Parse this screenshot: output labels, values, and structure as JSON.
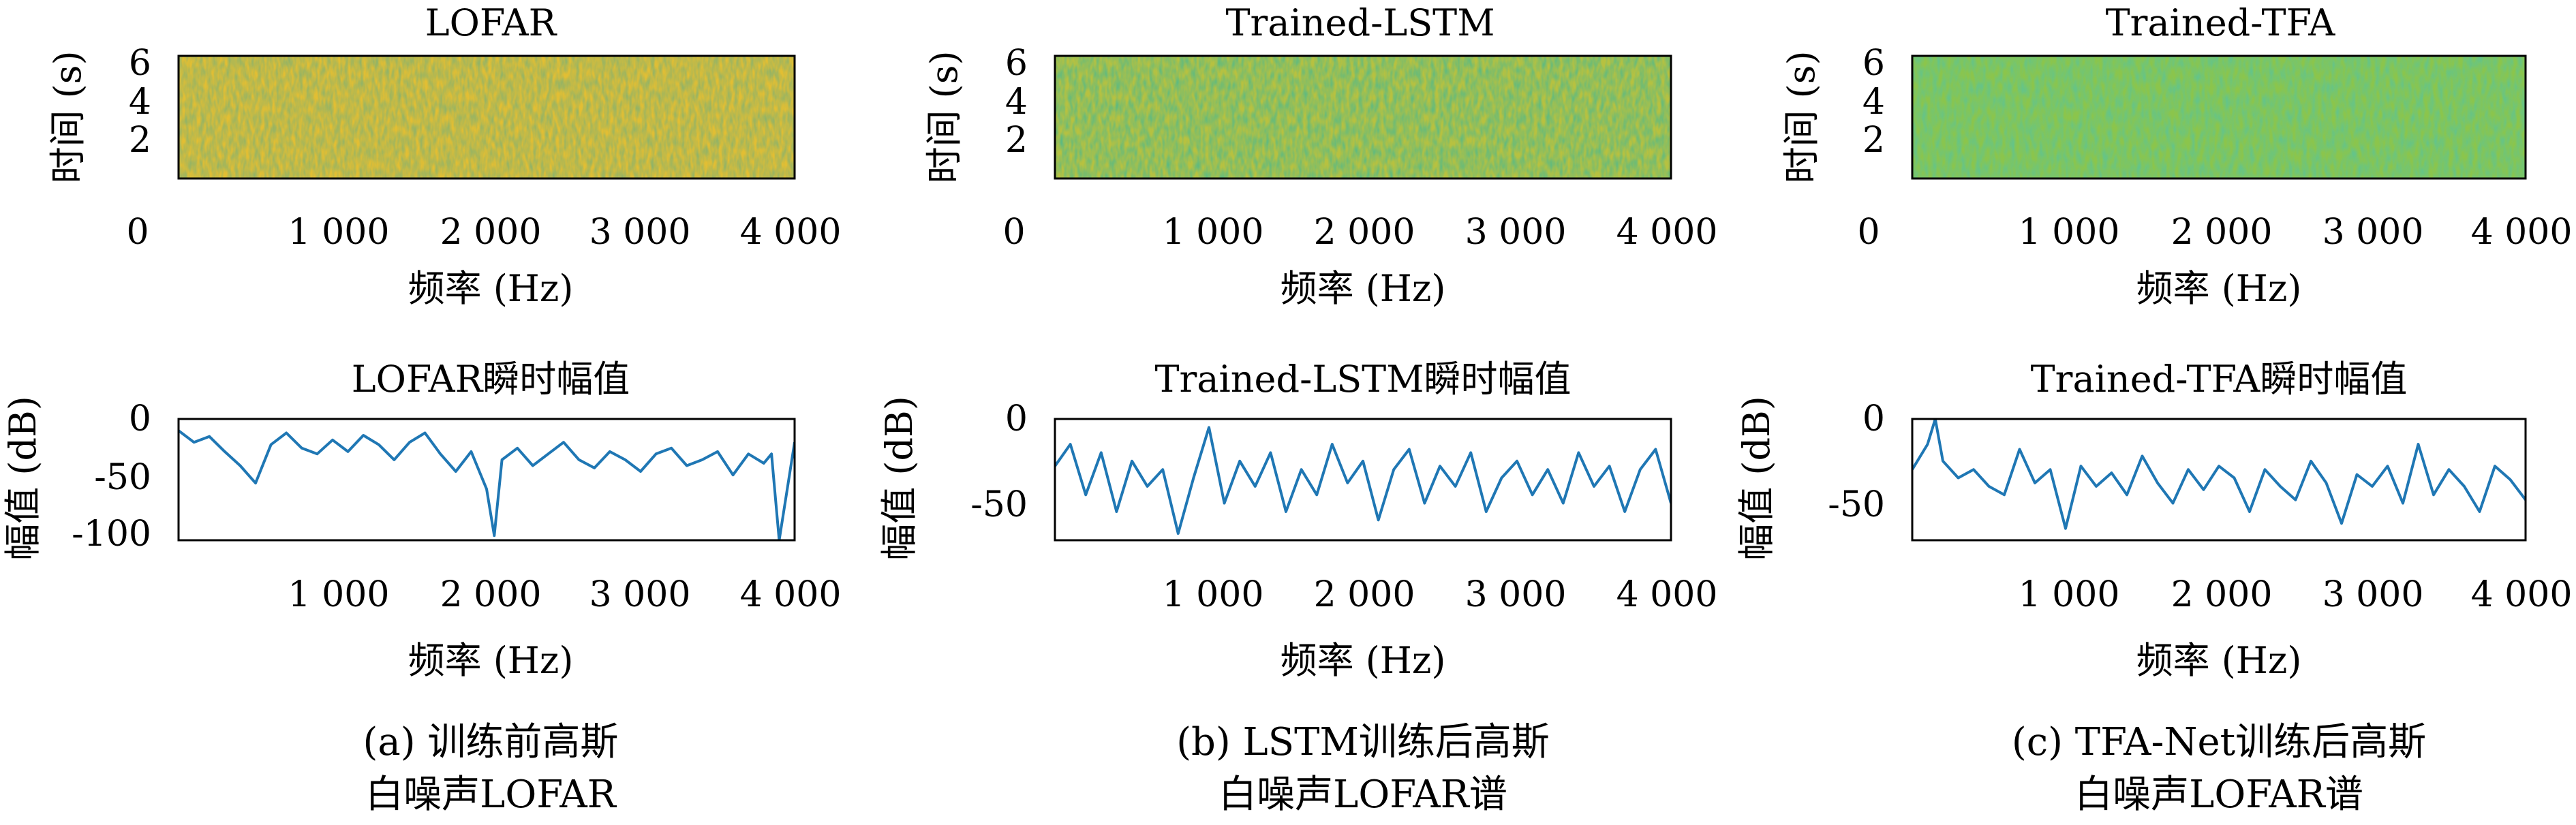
{
  "panels": [
    {
      "caption": [
        "(a) 训练前高斯",
        "白噪声LOFAR"
      ],
      "spectrogram": {
        "title": "LOFAR",
        "xlabel": "频率 (Hz)",
        "ylabel": "时间 (s)",
        "xticks": [
          0,
          1000,
          2000,
          3000,
          4000
        ],
        "xtick_labels": [
          "0",
          "1 000",
          "2 000",
          "3 000",
          "4 000"
        ],
        "yticks": [
          2,
          4,
          6
        ],
        "ytick_labels": [
          "2",
          "4",
          "6"
        ]
      },
      "amplitude": {
        "title": "LOFAR瞬时幅值",
        "xlabel": "频率 (Hz)",
        "ylabel": "幅值 (dB)",
        "xticks": [
          1000,
          2000,
          3000,
          4000
        ],
        "xtick_labels": [
          "1 000",
          "2 000",
          "3 000",
          "4 000"
        ],
        "yticks": [
          0,
          -50,
          -100
        ],
        "ytick_labels": [
          "0",
          "-50",
          "-100"
        ]
      }
    },
    {
      "caption": [
        "(b) LSTM训练后高斯",
        "白噪声LOFAR谱"
      ],
      "spectrogram": {
        "title": "Trained-LSTM",
        "xlabel": "频率 (Hz)",
        "ylabel": "时间 (s)",
        "xticks": [
          0,
          1000,
          2000,
          3000,
          4000
        ],
        "xtick_labels": [
          "0",
          "1 000",
          "2 000",
          "3 000",
          "4 000"
        ],
        "yticks": [
          2,
          4,
          6
        ],
        "ytick_labels": [
          "2",
          "4",
          "6"
        ]
      },
      "amplitude": {
        "title": "Trained-LSTM瞬时幅值",
        "xlabel": "频率 (Hz)",
        "ylabel": "幅值 (dB)",
        "xticks": [
          1000,
          2000,
          3000,
          4000
        ],
        "xtick_labels": [
          "1 000",
          "2 000",
          "3 000",
          "4 000"
        ],
        "yticks": [
          0,
          -50
        ],
        "ytick_labels": [
          "0",
          "-50"
        ]
      }
    },
    {
      "caption": [
        "(c) TFA-Net训练后高斯",
        "白噪声LOFAR谱"
      ],
      "spectrogram": {
        "title": "Trained-TFA",
        "xlabel": "频率 (Hz)",
        "ylabel": "时间 (s)",
        "xticks": [
          0,
          1000,
          2000,
          3000,
          4000
        ],
        "xtick_labels": [
          "0",
          "1 000",
          "2 000",
          "3 000",
          "4 000"
        ],
        "yticks": [
          2,
          4,
          6
        ],
        "ytick_labels": [
          "2",
          "4",
          "6"
        ]
      },
      "amplitude": {
        "title": "Trained-TFA瞬时幅值",
        "xlabel": "频率 (Hz)",
        "ylabel": "幅值 (dB)",
        "xticks": [
          1000,
          2000,
          3000,
          4000
        ],
        "xtick_labels": [
          "1 000",
          "2 000",
          "3 000",
          "4 000"
        ],
        "yticks": [
          0,
          -50
        ],
        "ytick_labels": [
          "0",
          "-50"
        ]
      }
    }
  ],
  "chart_data": [
    {
      "type": "heatmap",
      "title": "LOFAR",
      "xlabel": "频率 (Hz)",
      "ylabel": "时间 (s)",
      "xlim": [
        0,
        4000
      ],
      "ylim": [
        0,
        6.5
      ],
      "colormap": "viridis",
      "dominant_colors": [
        "#e8c030",
        "#c9b536",
        "#8ebb4a"
      ],
      "texture": "fine noise, mostly yellow"
    },
    {
      "type": "heatmap",
      "title": "Trained-LSTM",
      "xlabel": "频率 (Hz)",
      "ylabel": "时间 (s)",
      "xlim": [
        0,
        4000
      ],
      "ylim": [
        0,
        6.5
      ],
      "colormap": "viridis",
      "dominant_colors": [
        "#c7c23e",
        "#a8bf48",
        "#6fb95c"
      ],
      "texture": "fine noise, yellow-green"
    },
    {
      "type": "heatmap",
      "title": "Trained-TFA",
      "xlabel": "频率 (Hz)",
      "ylabel": "时间 (s)",
      "xlim": [
        0,
        4000
      ],
      "ylim": [
        0,
        6.5
      ],
      "colormap": "viridis",
      "dominant_colors": [
        "#8fc64a",
        "#7bc456",
        "#3fb37a"
      ],
      "texture": "fine noise, green"
    },
    {
      "type": "line",
      "title": "LOFAR瞬时幅值",
      "xlabel": "频率 (Hz)",
      "ylabel": "幅值 (dB)",
      "xlim": [
        0,
        4000
      ],
      "ylim": [
        -104,
        0
      ],
      "series": [
        {
          "color": "#1f77b4",
          "x": [
            0,
            100,
            200,
            300,
            400,
            500,
            600,
            700,
            800,
            900,
            1000,
            1100,
            1200,
            1300,
            1400,
            1500,
            1600,
            1700,
            1800,
            1900,
            2000,
            2050,
            2100,
            2200,
            2300,
            2400,
            2500,
            2600,
            2700,
            2800,
            2900,
            3000,
            3100,
            3200,
            3300,
            3400,
            3500,
            3600,
            3700,
            3800,
            3850,
            3900,
            4000
          ],
          "y": [
            -10,
            -20,
            -15,
            -28,
            -40,
            -55,
            -22,
            -12,
            -25,
            -30,
            -18,
            -28,
            -14,
            -22,
            -35,
            -20,
            -12,
            -30,
            -45,
            -28,
            -60,
            -100,
            -35,
            -25,
            -40,
            -30,
            -20,
            -35,
            -42,
            -28,
            -35,
            -45,
            -30,
            -25,
            -40,
            -35,
            -28,
            -48,
            -30,
            -38,
            -30,
            -104,
            -20
          ]
        }
      ]
    },
    {
      "type": "line",
      "title": "Trained-LSTM瞬时幅值",
      "xlabel": "频率 (Hz)",
      "ylabel": "幅值 (dB)",
      "xlim": [
        0,
        4000
      ],
      "ylim": [
        -72,
        0
      ],
      "series": [
        {
          "color": "#1f77b4",
          "x": [
            0,
            100,
            200,
            300,
            400,
            500,
            600,
            700,
            800,
            900,
            1000,
            1100,
            1200,
            1300,
            1400,
            1500,
            1600,
            1700,
            1800,
            1900,
            2000,
            2100,
            2200,
            2300,
            2400,
            2500,
            2600,
            2700,
            2800,
            2900,
            3000,
            3100,
            3200,
            3300,
            3400,
            3500,
            3600,
            3700,
            3800,
            3900,
            4000
          ],
          "y": [
            -28,
            -15,
            -45,
            -20,
            -55,
            -25,
            -40,
            -30,
            -68,
            -35,
            -5,
            -50,
            -25,
            -40,
            -20,
            -55,
            -30,
            -45,
            -15,
            -38,
            -25,
            -60,
            -30,
            -18,
            -50,
            -28,
            -40,
            -20,
            -55,
            -35,
            -25,
            -45,
            -30,
            -50,
            -20,
            -40,
            -28,
            -55,
            -30,
            -18,
            -50
          ]
        }
      ]
    },
    {
      "type": "line",
      "title": "Trained-TFA瞬时幅值",
      "xlabel": "频率 (Hz)",
      "ylabel": "幅值 (dB)",
      "xlim": [
        0,
        4000
      ],
      "ylim": [
        -72,
        0
      ],
      "series": [
        {
          "color": "#1f77b4",
          "x": [
            0,
            100,
            150,
            200,
            300,
            400,
            500,
            600,
            700,
            800,
            900,
            1000,
            1100,
            1200,
            1300,
            1400,
            1500,
            1600,
            1700,
            1800,
            1900,
            2000,
            2100,
            2200,
            2300,
            2400,
            2500,
            2600,
            2700,
            2800,
            2900,
            3000,
            3100,
            3200,
            3300,
            3400,
            3500,
            3600,
            3700,
            3800,
            3900,
            4000
          ],
          "y": [
            -30,
            -15,
            0,
            -25,
            -35,
            -30,
            -40,
            -45,
            -18,
            -38,
            -30,
            -65,
            -28,
            -40,
            -32,
            -45,
            -22,
            -38,
            -50,
            -30,
            -42,
            -28,
            -35,
            -55,
            -30,
            -40,
            -48,
            -25,
            -38,
            -62,
            -33,
            -40,
            -28,
            -50,
            -15,
            -45,
            -30,
            -40,
            -55,
            -28,
            -36,
            -48
          ]
        }
      ]
    }
  ]
}
